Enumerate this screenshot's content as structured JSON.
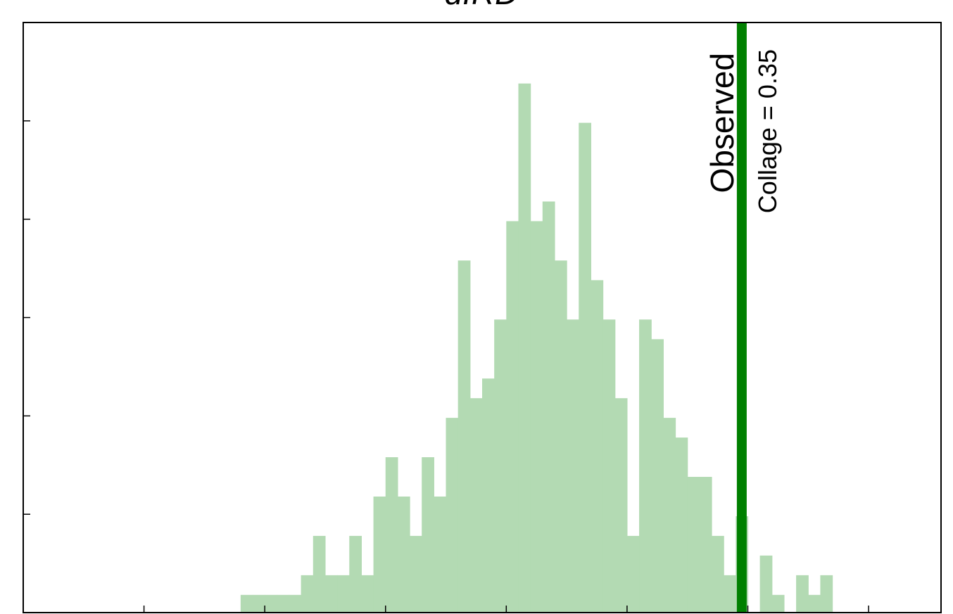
{
  "chart_data": {
    "type": "bar",
    "title": "dIRD",
    "xlabel": "",
    "ylabel": "",
    "grid": false,
    "colors": {
      "bars": "#b3dab3",
      "observed_line": "#008000",
      "axes": "#000000"
    },
    "bin_width": 0.005,
    "bars": [
      {
        "x": 0.2225,
        "y": 0.9
      },
      {
        "x": 0.2275,
        "y": 0.9
      },
      {
        "x": 0.2325,
        "y": 0.9
      },
      {
        "x": 0.2375,
        "y": 0.9
      },
      {
        "x": 0.2425,
        "y": 0.9
      },
      {
        "x": 0.2475,
        "y": 1.9
      },
      {
        "x": 0.2525,
        "y": 3.9
      },
      {
        "x": 0.2575,
        "y": 1.9
      },
      {
        "x": 0.2625,
        "y": 1.9
      },
      {
        "x": 0.2675,
        "y": 3.9
      },
      {
        "x": 0.2725,
        "y": 1.9
      },
      {
        "x": 0.2775,
        "y": 5.9
      },
      {
        "x": 0.2825,
        "y": 7.9
      },
      {
        "x": 0.2875,
        "y": 5.9
      },
      {
        "x": 0.2925,
        "y": 3.9
      },
      {
        "x": 0.2975,
        "y": 7.9
      },
      {
        "x": 0.3025,
        "y": 5.9
      },
      {
        "x": 0.3075,
        "y": 9.9
      },
      {
        "x": 0.3125,
        "y": 17.9
      },
      {
        "x": 0.3175,
        "y": 10.9
      },
      {
        "x": 0.3225,
        "y": 11.9
      },
      {
        "x": 0.3275,
        "y": 14.9
      },
      {
        "x": 0.3325,
        "y": 19.9
      },
      {
        "x": 0.3375,
        "y": 26.9
      },
      {
        "x": 0.3425,
        "y": 19.9
      },
      {
        "x": 0.3475,
        "y": 20.9
      },
      {
        "x": 0.3525,
        "y": 17.9
      },
      {
        "x": 0.3575,
        "y": 14.9
      },
      {
        "x": 0.3625,
        "y": 24.9
      },
      {
        "x": 0.3675,
        "y": 16.9
      },
      {
        "x": 0.3725,
        "y": 14.9
      },
      {
        "x": 0.3775,
        "y": 10.9
      },
      {
        "x": 0.3825,
        "y": 3.9
      },
      {
        "x": 0.3875,
        "y": 14.9
      },
      {
        "x": 0.3925,
        "y": 13.9
      },
      {
        "x": 0.3975,
        "y": 9.9
      },
      {
        "x": 0.4025,
        "y": 8.9
      },
      {
        "x": 0.4075,
        "y": 6.9
      },
      {
        "x": 0.4125,
        "y": 6.9
      },
      {
        "x": 0.4175,
        "y": 3.9
      },
      {
        "x": 0.4225,
        "y": 1.9
      },
      {
        "x": 0.4275,
        "y": 4.9
      },
      {
        "x": 0.4325,
        "y": 0.0
      },
      {
        "x": 0.4375,
        "y": 2.9
      },
      {
        "x": 0.4425,
        "y": 0.9
      },
      {
        "x": 0.4475,
        "y": 0.0
      },
      {
        "x": 0.4525,
        "y": 1.9
      },
      {
        "x": 0.4575,
        "y": 0.9
      },
      {
        "x": 0.4625,
        "y": 1.9
      }
    ],
    "xlim": [
      0.13,
      0.51
    ],
    "ylim": [
      0,
      30
    ],
    "x_ticks": [
      0.18,
      0.23,
      0.28,
      0.33,
      0.38,
      0.43,
      0.48
    ],
    "y_ticks": [
      5,
      10,
      15,
      20,
      25,
      30
    ],
    "observed": {
      "x": 0.4275,
      "label": "Observed",
      "annotation": "Collage = 0.35"
    }
  }
}
